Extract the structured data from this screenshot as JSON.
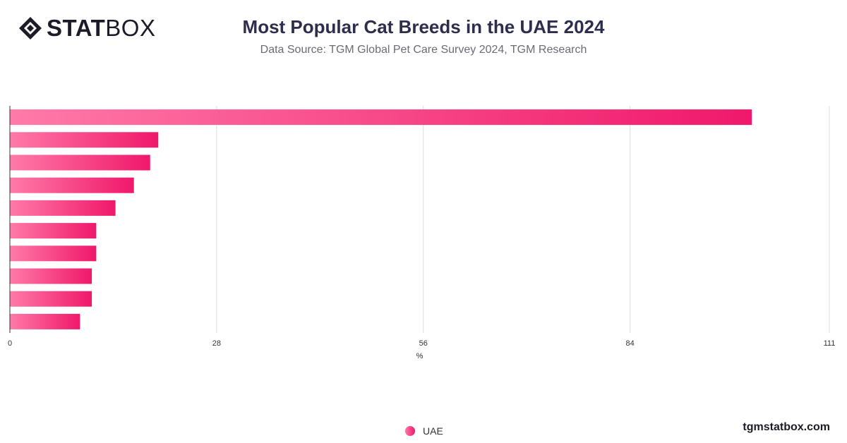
{
  "brand": {
    "logo_bold": "STAT",
    "logo_light": "BOX",
    "website": "tgmstatbox.com"
  },
  "header": {
    "title": "Most Popular Cat Breeds in the UAE 2024",
    "subtitle": "Data Source: TGM Global Pet Care Survey 2024, TGM Research"
  },
  "colors": {
    "bar_start": "#ff7aa8",
    "bar_end": "#f0186a",
    "axis": "#333333",
    "grid": "#dddddd",
    "title": "#2d2d4e"
  },
  "chart_data": {
    "type": "bar",
    "orientation": "horizontal",
    "categories_visible": false,
    "xlabel": "%",
    "xlim": [
      0,
      111
    ],
    "xticks": [
      0,
      28,
      56,
      84,
      111
    ],
    "grid": true,
    "legend_position": "bottom",
    "series": [
      {
        "name": "UAE",
        "values": [
          100.5,
          20.1,
          19,
          16.8,
          14.3,
          11.7,
          11.7,
          11.1,
          11.1,
          9.5
        ]
      }
    ]
  }
}
